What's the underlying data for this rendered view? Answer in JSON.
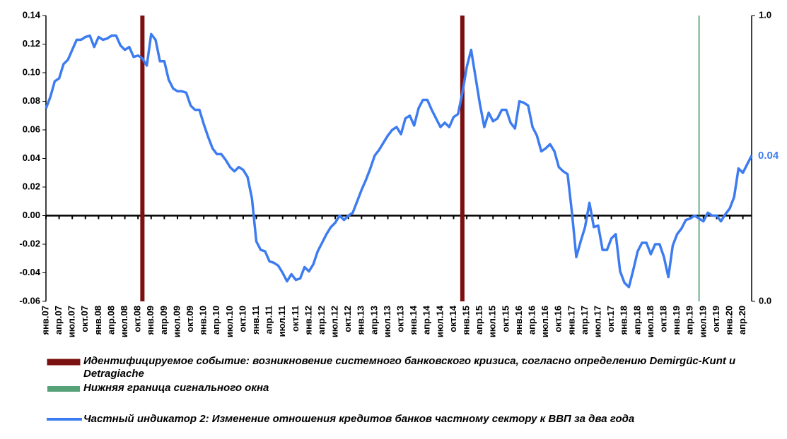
{
  "chart_data": {
    "type": "line",
    "categories": [
      "янв.07",
      null,
      null,
      "апр.07",
      null,
      null,
      "июл.07",
      null,
      null,
      "окт.07",
      null,
      null,
      "янв.08",
      null,
      null,
      "апр.08",
      null,
      null,
      "июл.08",
      null,
      null,
      "окт.08",
      null,
      null,
      "янв.09",
      null,
      null,
      "апр.09",
      null,
      null,
      "июл.09",
      null,
      null,
      "окт.09",
      null,
      null,
      "янв.10",
      null,
      null,
      "апр.10",
      null,
      null,
      "июл.10",
      null,
      null,
      "окт.10",
      null,
      null,
      "янв.11",
      null,
      null,
      "апр.11",
      null,
      null,
      "июл.11",
      null,
      null,
      "окт.11",
      null,
      null,
      "янв.12",
      null,
      null,
      "апр.12",
      null,
      null,
      "июл.12",
      null,
      null,
      "окт.12",
      null,
      null,
      "янв.13",
      null,
      null,
      "апр.13",
      null,
      null,
      "июл.13",
      null,
      null,
      "окт.13",
      null,
      null,
      "янв.14",
      null,
      null,
      "апр.14",
      null,
      null,
      "июл.14",
      null,
      null,
      "окт.14",
      null,
      null,
      "янв.15",
      null,
      null,
      "апр.15",
      null,
      null,
      "июл.15",
      null,
      null,
      "окт.15",
      null,
      null,
      "янв.16",
      null,
      null,
      "апр.16",
      null,
      null,
      "июл.16",
      null,
      null,
      "окт.16",
      null,
      null,
      "янв.17",
      null,
      null,
      "апр.17",
      null,
      null,
      "июл.17",
      null,
      null,
      "окт.17",
      null,
      null,
      "янв.18",
      null,
      null,
      "апр.18",
      null,
      null,
      "июл.18",
      null,
      null,
      "окт.18",
      null,
      null,
      "янв.19",
      null,
      null,
      "апр.19",
      null,
      null,
      "июл.19",
      null,
      null,
      "окт.19",
      null,
      null,
      "янв.20",
      null,
      null,
      "апр.20",
      null,
      null
    ],
    "series": [
      {
        "name": "Частный индикатор 2: Изменение отношения кредитов банков частному сектору к ВВП за два года",
        "color": "#3d7cf0",
        "values": [
          0.075,
          0.083,
          0.094,
          0.096,
          0.106,
          0.109,
          0.116,
          0.123,
          0.123,
          0.125,
          0.126,
          0.118,
          0.125,
          0.123,
          0.124,
          0.126,
          0.126,
          0.119,
          0.116,
          0.118,
          0.111,
          0.112,
          0.11,
          0.105,
          0.127,
          0.123,
          0.108,
          0.108,
          0.095,
          0.089,
          0.087,
          0.087,
          0.086,
          0.077,
          0.074,
          0.074,
          0.064,
          0.055,
          0.047,
          0.043,
          0.043,
          0.039,
          0.034,
          0.031,
          0.034,
          0.032,
          0.027,
          0.012,
          -0.018,
          -0.024,
          -0.025,
          -0.032,
          -0.033,
          -0.035,
          -0.04,
          -0.046,
          -0.041,
          -0.045,
          -0.044,
          -0.036,
          -0.039,
          -0.034,
          -0.025,
          -0.019,
          -0.013,
          -0.008,
          -0.005,
          0.0,
          -0.003,
          0.0,
          0.002,
          0.01,
          0.018,
          0.025,
          0.033,
          0.042,
          0.046,
          0.051,
          0.056,
          0.06,
          0.062,
          0.057,
          0.068,
          0.07,
          0.063,
          0.075,
          0.081,
          0.081,
          0.074,
          0.068,
          0.062,
          0.065,
          0.062,
          0.069,
          0.071,
          0.086,
          0.104,
          0.116,
          0.097,
          0.078,
          0.062,
          0.072,
          0.066,
          0.068,
          0.074,
          0.074,
          0.065,
          0.061,
          0.08,
          0.079,
          0.077,
          0.062,
          0.056,
          0.045,
          0.047,
          0.05,
          0.045,
          0.034,
          0.031,
          0.029,
          0.002,
          -0.029,
          -0.018,
          -0.008,
          0.009,
          -0.008,
          -0.007,
          -0.024,
          -0.024,
          -0.016,
          -0.013,
          -0.039,
          -0.047,
          -0.05,
          -0.038,
          -0.025,
          -0.019,
          -0.019,
          -0.027,
          -0.02,
          -0.02,
          -0.029,
          -0.043,
          -0.021,
          -0.013,
          -0.009,
          -0.003,
          -0.002,
          0.0,
          -0.002,
          -0.004,
          0.002,
          0.0,
          0.0,
          -0.004,
          0.001,
          0.005,
          0.013,
          0.033,
          0.03,
          0.036,
          0.042
        ]
      }
    ],
    "ylim": [
      -0.06,
      0.14
    ],
    "yticks": [
      0.14,
      0.12,
      {
        "value": 0.1,
        "label": "0.10"
      },
      0.08,
      0.06,
      0.04,
      0.02,
      {
        "value": 0,
        "label": "0.00"
      },
      -0.02,
      -0.04,
      -0.06
    ],
    "y2lim": [
      0,
      1
    ],
    "y2ticks": [
      {
        "value": 0,
        "label": "0.0"
      },
      {
        "value": 1,
        "label": "1.0"
      }
    ],
    "annotation": "0.04",
    "crisis": {
      "name": "Идентифицируемое событие: возникновение системного банковского кризиса, согласно определению Demirgüc-Kunt и Detragiache",
      "color": "#7b1010",
      "x": [
        22,
        95
      ]
    },
    "signal": {
      "name": "Нижняя граница сигнального окна",
      "color": "#2e8b57",
      "x": [
        149
      ]
    }
  }
}
